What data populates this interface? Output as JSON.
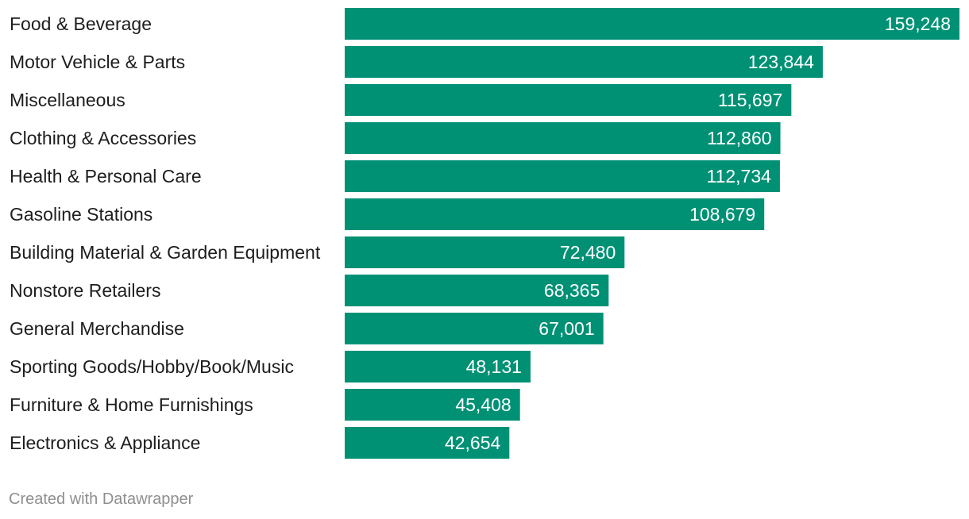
{
  "chart_data": {
    "type": "bar",
    "orientation": "horizontal",
    "categories": [
      "Food & Beverage",
      "Motor Vehicle & Parts",
      "Miscellaneous",
      "Clothing & Accessories",
      "Health & Personal Care",
      "Gasoline Stations",
      "Building Material & Garden Equipment",
      "Nonstore Retailers",
      "General Merchandise",
      "Sporting Goods/Hobby/Book/Music",
      "Furniture & Home Furnishings",
      "Electronics & Appliance"
    ],
    "values": [
      159248,
      123844,
      115697,
      112860,
      112734,
      108679,
      72480,
      68365,
      67001,
      48131,
      45408,
      42654
    ],
    "value_labels": [
      "159,248",
      "123,844",
      "115,697",
      "112,860",
      "112,734",
      "108,679",
      "72,480",
      "68,365",
      "67,001",
      "48,131",
      "45,408",
      "42,654"
    ],
    "xlim": [
      0,
      159248
    ],
    "grid": false,
    "legend": "none",
    "colors": {
      "bar": "#009175",
      "label": "#1d1d1d",
      "value_label": "#ffffff",
      "credit": "#8f8f8f"
    }
  },
  "footer": {
    "credit": "Created with Datawrapper"
  }
}
